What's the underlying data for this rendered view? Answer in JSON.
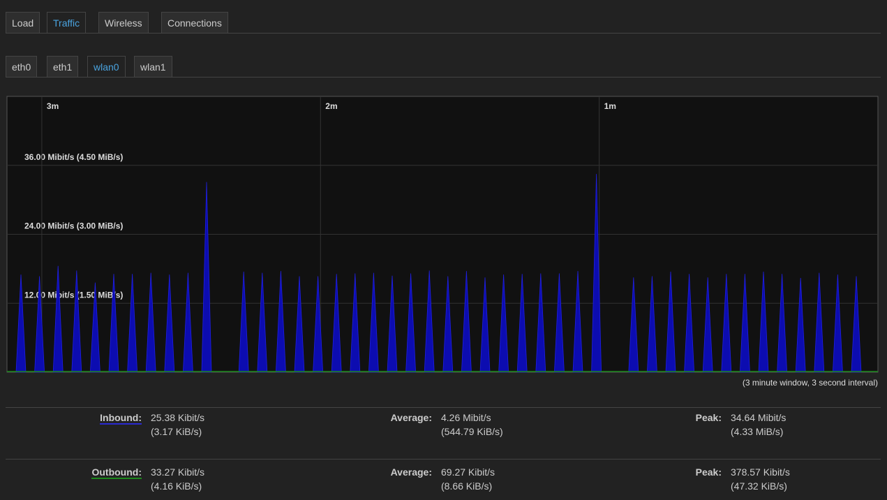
{
  "tabs": [
    "Load",
    "Traffic",
    "Wireless",
    "Connections"
  ],
  "active_tab": 1,
  "interfaces": [
    "eth0",
    "eth1",
    "wlan0",
    "wlan1"
  ],
  "active_interface": 2,
  "chart_data": {
    "type": "area",
    "series": [
      {
        "name": "Inbound",
        "color": "#0c0cb0",
        "values": [
          17,
          16.7,
          18.5,
          17.7,
          15.6,
          17.1,
          17.1,
          17.3,
          17,
          17.3,
          33.1,
          null,
          17.5,
          17.3,
          17.6,
          16.7,
          16.7,
          17.1,
          17.2,
          17.3,
          16.8,
          17.2,
          17.7,
          16.7,
          17.6,
          16.5,
          17,
          17.1,
          17.2,
          17.2,
          17.6,
          34.5,
          null,
          16.5,
          16.7,
          17.5,
          17.1,
          16.5,
          17.1,
          17.1,
          17.5,
          17.1,
          16.4,
          17.3,
          17,
          16.7
        ]
      }
    ],
    "ylim": [
      0,
      48
    ],
    "yticks": [
      {
        "value": 12,
        "label": "12.00 Mibit/s (1.50 MiB/s)"
      },
      {
        "value": 24,
        "label": "24.00 Mibit/s (3.00 MiB/s)"
      },
      {
        "value": 36,
        "label": "36.00 Mibit/s (4.50 MiB/s)"
      }
    ],
    "xlim": [
      187.5,
      0
    ],
    "xticks": [
      {
        "value": 180,
        "label": "3m"
      },
      {
        "value": 120,
        "label": "2m"
      },
      {
        "value": 60,
        "label": "1m"
      }
    ],
    "caption": "(3 minute window, 3 second interval)"
  },
  "stats": [
    {
      "label": "Inbound:",
      "current": [
        "25.38 Kibit/s",
        "(3.17 KiB/s)"
      ],
      "average_label": "Average:",
      "average": [
        "4.26 Mibit/s",
        "(544.79 KiB/s)"
      ],
      "peak_label": "Peak:",
      "peak": [
        "34.64 Mibit/s",
        "(4.33 MiB/s)"
      ]
    },
    {
      "label": "Outbound:",
      "current": [
        "33.27 Kibit/s",
        "(4.16 KiB/s)"
      ],
      "average_label": "Average:",
      "average": [
        "69.27 Kibit/s",
        "(8.66 KiB/s)"
      ],
      "peak_label": "Peak:",
      "peak": [
        "378.57 Kibit/s",
        "(47.32 KiB/s)"
      ]
    }
  ]
}
